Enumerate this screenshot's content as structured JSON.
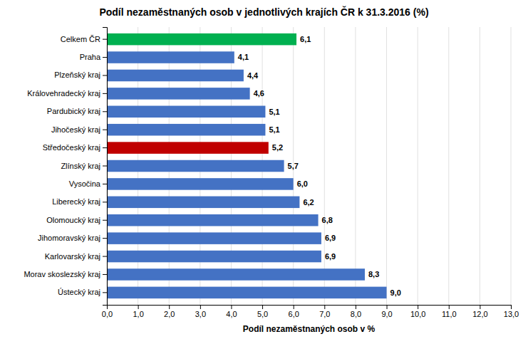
{
  "chart_data": {
    "type": "bar",
    "orientation": "horizontal",
    "title": "Podíl nezaměstnaných osob v jednotlivých krajích ČR k 31.3.2016 (%)",
    "xlabel": "Podíl nezaměstnaných osob v %",
    "categories": [
      "Celkem ČR",
      "Praha",
      "Plzeňský kraj",
      "Královehradecký kraj",
      "Pardubický kraj",
      "Jihočeský kraj",
      "Středočeský kraj",
      "Zlínský kraj",
      "Vysočina",
      "Liberecký kraj",
      "Olomoucký kraj",
      "Jihomoravský kraj",
      "Karlovarský kraj",
      "Morav skoslezský kraj",
      "Ústecký kraj"
    ],
    "values": [
      6.1,
      4.1,
      4.4,
      4.6,
      5.1,
      5.1,
      5.2,
      5.7,
      6.0,
      6.2,
      6.8,
      6.9,
      6.9,
      8.3,
      9.0
    ],
    "value_labels": [
      "6,1",
      "4,1",
      "4,4",
      "4,6",
      "5,1",
      "5,1",
      "5,2",
      "5,7",
      "6,0",
      "6,2",
      "6,8",
      "6,9",
      "6,9",
      "8,3",
      "9,0"
    ],
    "data_labels": true,
    "colors": [
      "#00b050",
      "#4472c4",
      "#4472c4",
      "#4472c4",
      "#4472c4",
      "#4472c4",
      "#c00000",
      "#4472c4",
      "#4472c4",
      "#4472c4",
      "#4472c4",
      "#4472c4",
      "#4472c4",
      "#4472c4",
      "#4472c4"
    ],
    "xlim": [
      0,
      13.0
    ],
    "xticks": [
      {
        "value": 0.0,
        "label": "0,0"
      },
      {
        "value": 1.0,
        "label": "1,0"
      },
      {
        "value": 2.0,
        "label": "2,0"
      },
      {
        "value": 3.0,
        "label": "3,0"
      },
      {
        "value": 4.0,
        "label": "4,0"
      },
      {
        "value": 5.0,
        "label": "5,0"
      },
      {
        "value": 6.0,
        "label": "6,0"
      },
      {
        "value": 7.0,
        "label": "7,0"
      },
      {
        "value": 8.0,
        "label": "8,0"
      },
      {
        "value": 9.0,
        "label": "9,0"
      },
      {
        "value": 10.0,
        "label": "10,0"
      },
      {
        "value": 11.0,
        "label": "11,0"
      },
      {
        "value": 12.0,
        "label": "12,0"
      },
      {
        "value": 13.0,
        "label": "13,0"
      }
    ],
    "grid": true
  }
}
